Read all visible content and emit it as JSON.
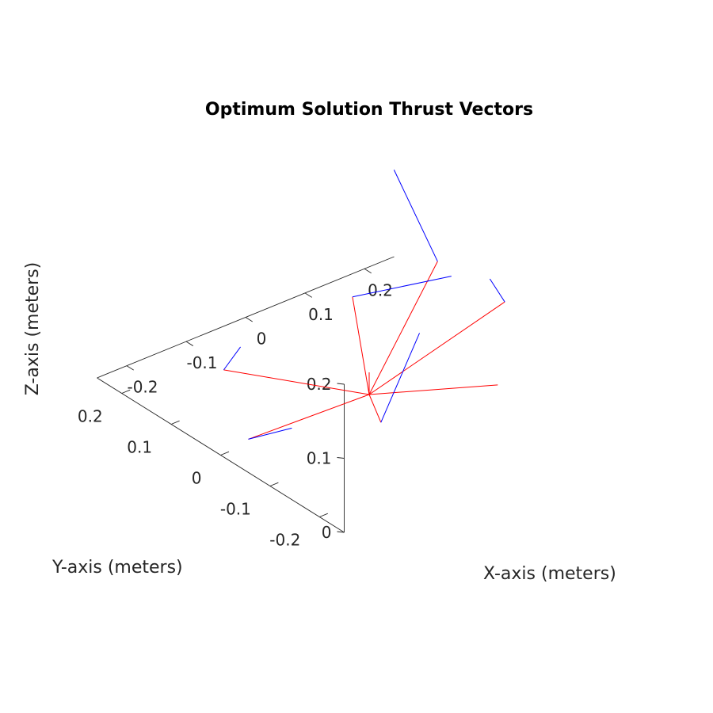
{
  "chart_data": {
    "type": "3d-line",
    "title": "Optimum Solution Thrust Vectors",
    "xlabel": "X-axis (meters)",
    "ylabel": "Y-axis (meters)",
    "zlabel": "Z-axis (meters)",
    "x_ticks": [
      "-0.2",
      "-0.1",
      "0",
      "0.1",
      "0.2"
    ],
    "y_ticks": [
      "-0.2",
      "-0.1",
      "0",
      "0.1",
      "0.2"
    ],
    "z_ticks": [
      "0",
      "0.1",
      "0.2"
    ],
    "xlim": [
      -0.25,
      0.25
    ],
    "ylim": [
      -0.25,
      0.25
    ],
    "zlim": [
      0,
      0.2
    ],
    "grid": false,
    "colors": {
      "arms": "#ff0000",
      "thrust": "#0000ff",
      "axes": "#262626"
    },
    "series": [
      {
        "segments": [
          [
            [
              0,
              0,
              0
            ],
            [
              -0.13,
              -0.18,
              0.08
            ]
          ],
          [
            [
              0,
              0,
              0
            ],
            [
              0.12,
              -0.13,
              0.14
            ]
          ],
          [
            [
              0,
              0,
              0
            ],
            [
              0.19,
              0.09,
              0.08
            ]
          ],
          [
            [
              0,
              0,
              0
            ],
            [
              0.13,
              0.19,
              0.01
            ]
          ],
          [
            [
              0,
              0,
              0
            ],
            [
              -0.12,
              0.15,
              0.01
            ]
          ],
          [
            [
              0,
              0,
              0
            ],
            [
              -0.22,
              -0.02,
              0.02
            ]
          ],
          [
            [
              0,
              0,
              0
            ],
            [
              0.05,
              -0.2,
              0.08
            ]
          ],
          [
            [
              0,
              0,
              0
            ],
            [
              0,
              0,
              0.03
            ]
          ]
        ]
      },
      {
        "segments": [
          [
            [
              -0.13,
              -0.18,
              0.08
            ],
            [
              -0.09,
              -0.21,
              0.2
            ]
          ],
          [
            [
              0.12,
              -0.13,
              0.14
            ],
            [
              0.07,
              -0.16,
              0.2
            ]
          ],
          [
            [
              0.19,
              0.09,
              0.08
            ],
            [
              0.15,
              0.13,
              0.2
            ]
          ],
          [
            [
              0.13,
              0.19,
              0.01
            ],
            [
              0.18,
              0.05,
              0.08
            ]
          ],
          [
            [
              -0.12,
              0.15,
              0.01
            ],
            [
              -0.15,
              0.08,
              0.08
            ]
          ],
          [
            [
              -0.22,
              -0.02,
              0.02
            ],
            [
              -0.23,
              -0.12,
              0.08
            ]
          ]
        ]
      }
    ]
  }
}
